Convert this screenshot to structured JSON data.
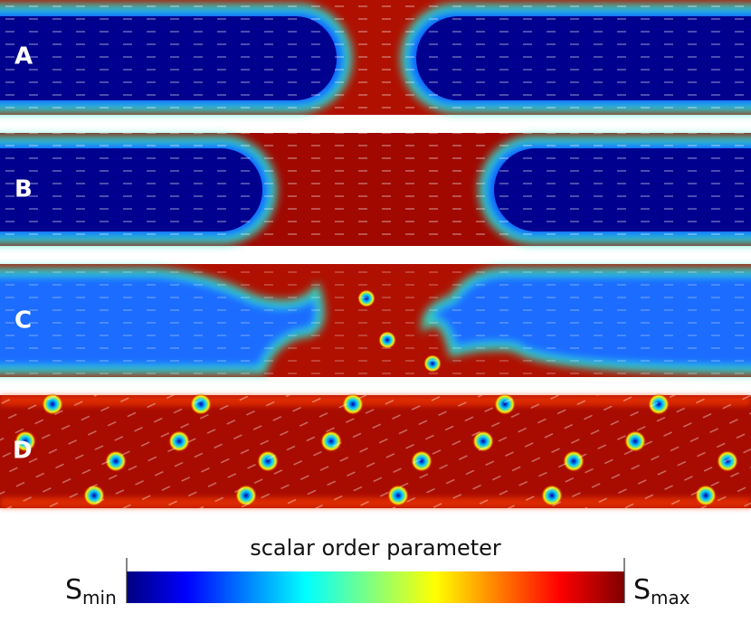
{
  "panels": [
    {
      "label": "A"
    },
    {
      "label": "B"
    },
    {
      "label": "C"
    },
    {
      "label": "D"
    }
  ],
  "colorbar": {
    "title": "scalar order parameter",
    "min_label": {
      "symbol": "S",
      "subscript": "min"
    },
    "max_label": {
      "symbol": "S",
      "subscript": "max"
    }
  }
}
